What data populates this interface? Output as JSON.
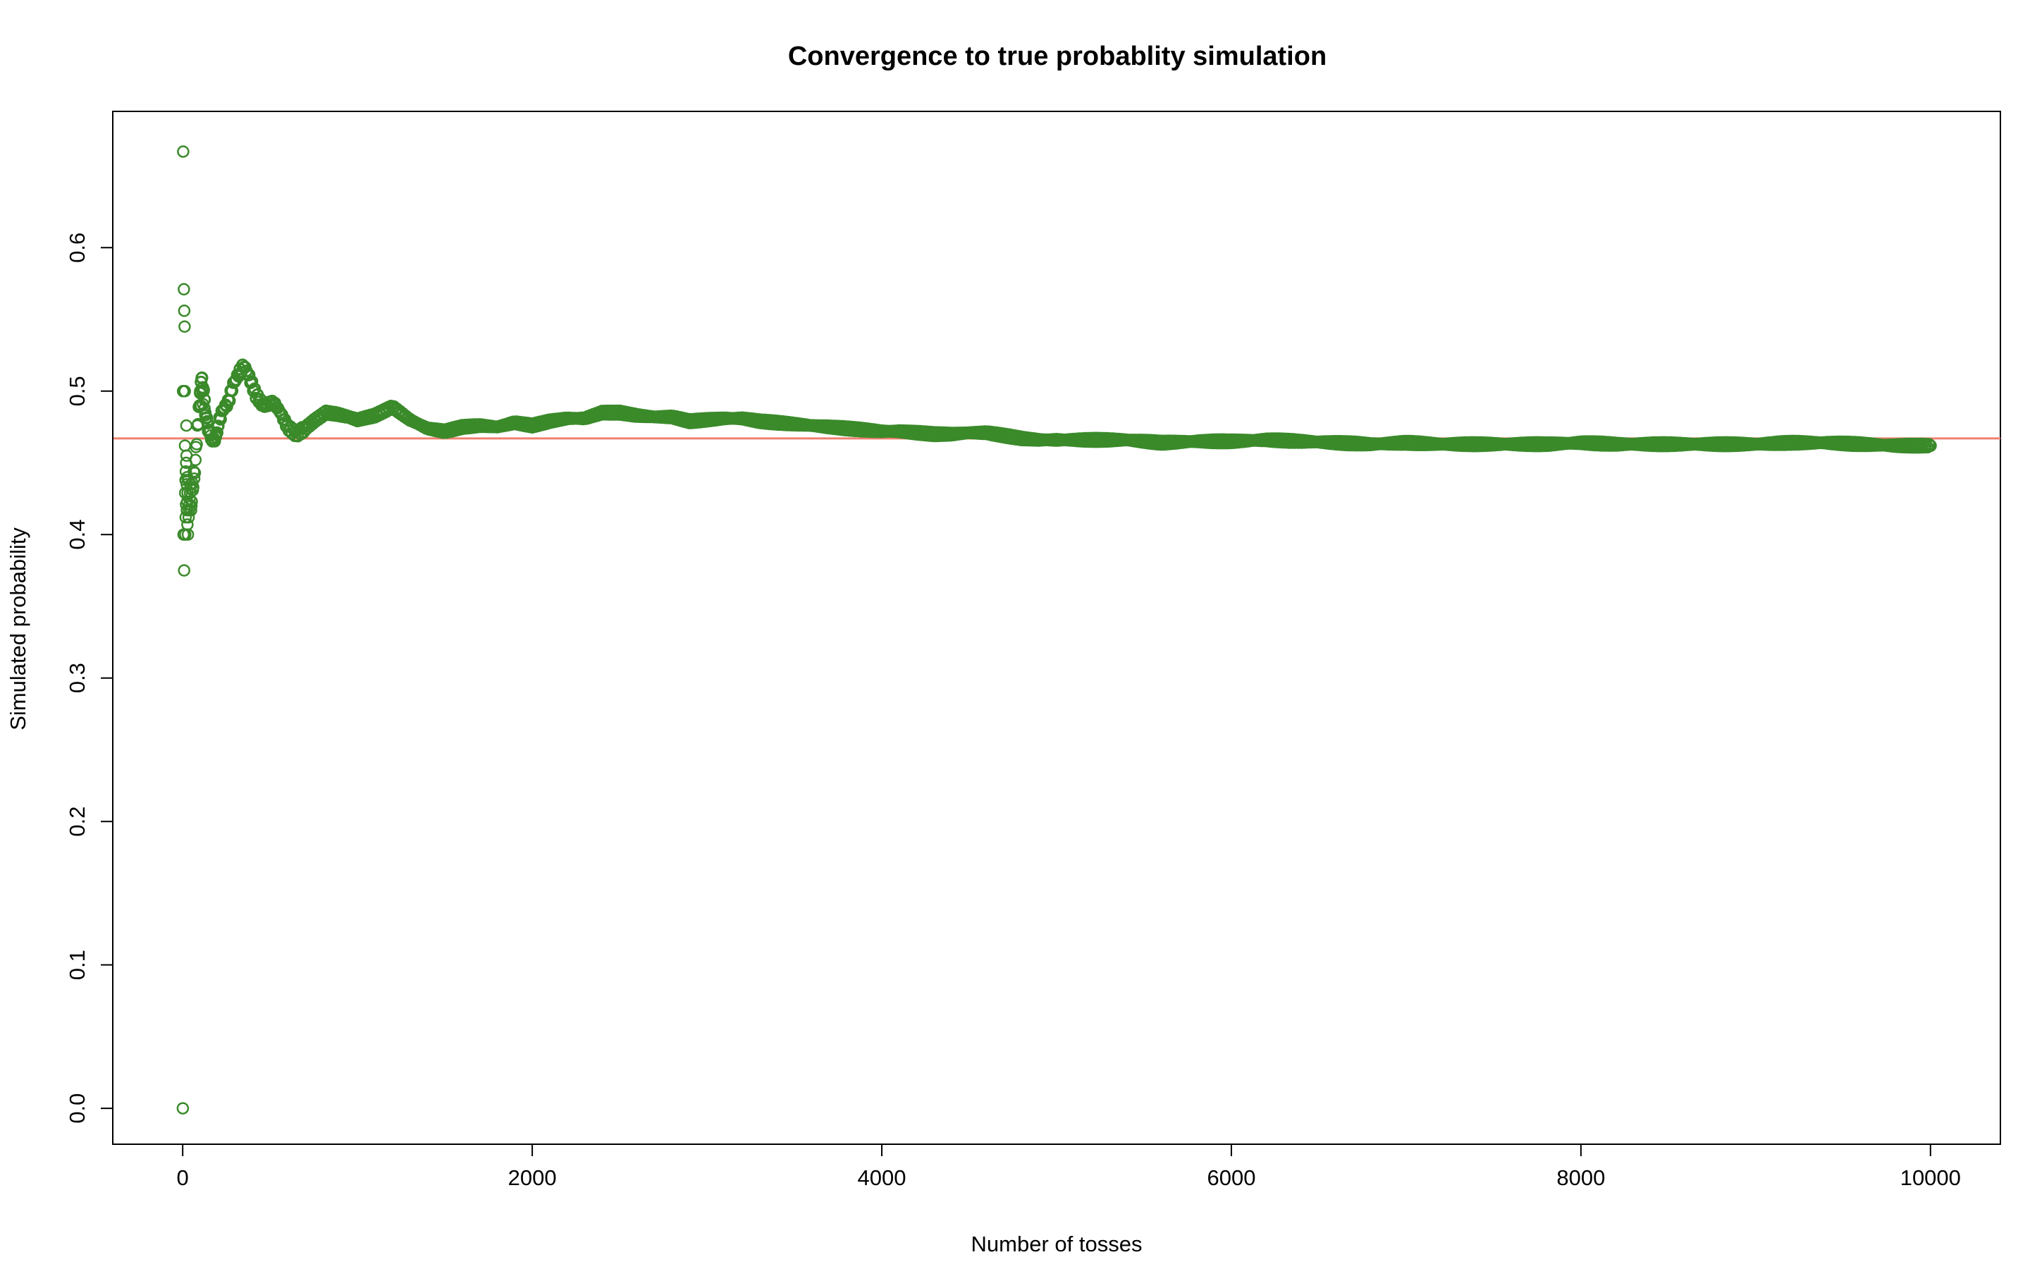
{
  "chart_data": {
    "type": "scatter",
    "title": "Convergence to true probablity simulation",
    "xlabel": "Number of tosses",
    "ylabel": "Simulated probability",
    "xlim": [
      -400,
      10400
    ],
    "ylim": [
      -0.025,
      0.695
    ],
    "x_ticks": [
      0,
      2000,
      4000,
      6000,
      8000,
      10000
    ],
    "x_tick_labels": [
      "0",
      "2000",
      "4000",
      "6000",
      "8000",
      "10000"
    ],
    "y_ticks": [
      0.0,
      0.1,
      0.2,
      0.3,
      0.4,
      0.5,
      0.6
    ],
    "y_tick_labels": [
      "0.0",
      "0.1",
      "0.2",
      "0.3",
      "0.4",
      "0.5",
      "0.6"
    ],
    "grid": false,
    "reference_line": {
      "y": 0.467,
      "color": "#F08070"
    },
    "series_color": "#3A8A2A",
    "trajectory": [
      [
        1,
        0.0
      ],
      [
        2,
        0.5
      ],
      [
        3,
        0.667
      ],
      [
        5,
        0.4
      ],
      [
        7,
        0.571
      ],
      [
        8,
        0.375
      ],
      [
        9,
        0.556
      ],
      [
        10,
        0.5
      ],
      [
        11,
        0.545
      ],
      [
        15,
        0.4
      ],
      [
        20,
        0.45
      ],
      [
        25,
        0.44
      ],
      [
        30,
        0.4
      ],
      [
        40,
        0.425
      ],
      [
        50,
        0.42
      ],
      [
        60,
        0.433
      ],
      [
        70,
        0.443
      ],
      [
        80,
        0.463
      ],
      [
        90,
        0.478
      ],
      [
        100,
        0.5
      ],
      [
        110,
        0.509
      ],
      [
        120,
        0.5
      ],
      [
        130,
        0.485
      ],
      [
        150,
        0.473
      ],
      [
        170,
        0.465
      ],
      [
        190,
        0.468
      ],
      [
        210,
        0.48
      ],
      [
        230,
        0.487
      ],
      [
        260,
        0.492
      ],
      [
        290,
        0.505
      ],
      [
        320,
        0.512
      ],
      [
        350,
        0.518
      ],
      [
        380,
        0.51
      ],
      [
        420,
        0.497
      ],
      [
        460,
        0.49
      ],
      [
        520,
        0.492
      ],
      [
        560,
        0.485
      ],
      [
        600,
        0.475
      ],
      [
        650,
        0.47
      ],
      [
        700,
        0.474
      ],
      [
        760,
        0.48
      ],
      [
        820,
        0.485
      ],
      [
        880,
        0.484
      ],
      [
        950,
        0.482
      ],
      [
        1000,
        0.48
      ],
      [
        1100,
        0.483
      ],
      [
        1200,
        0.489
      ],
      [
        1300,
        0.48
      ],
      [
        1400,
        0.474
      ],
      [
        1500,
        0.472
      ],
      [
        1600,
        0.475
      ],
      [
        1700,
        0.476
      ],
      [
        1800,
        0.475
      ],
      [
        1900,
        0.478
      ],
      [
        2000,
        0.476
      ],
      [
        2100,
        0.479
      ],
      [
        2200,
        0.481
      ],
      [
        2300,
        0.481
      ],
      [
        2400,
        0.485
      ],
      [
        2500,
        0.485
      ],
      [
        2600,
        0.483
      ],
      [
        2700,
        0.482
      ],
      [
        2800,
        0.482
      ],
      [
        2900,
        0.479
      ],
      [
        3000,
        0.48
      ],
      [
        3100,
        0.481
      ],
      [
        3200,
        0.481
      ],
      [
        3300,
        0.479
      ],
      [
        3400,
        0.478
      ],
      [
        3500,
        0.477
      ],
      [
        3600,
        0.476
      ],
      [
        3700,
        0.475
      ],
      [
        3800,
        0.474
      ],
      [
        3900,
        0.473
      ],
      [
        4000,
        0.472
      ],
      [
        4100,
        0.472
      ],
      [
        4200,
        0.471
      ],
      [
        4300,
        0.47
      ],
      [
        4400,
        0.47
      ],
      [
        4500,
        0.471
      ],
      [
        4600,
        0.471
      ],
      [
        4700,
        0.469
      ],
      [
        4800,
        0.467
      ],
      [
        4900,
        0.466
      ],
      [
        5000,
        0.466
      ],
      [
        5200,
        0.466
      ],
      [
        5400,
        0.466
      ],
      [
        5600,
        0.464
      ],
      [
        5800,
        0.465
      ],
      [
        6000,
        0.465
      ],
      [
        6200,
        0.466
      ],
      [
        6400,
        0.465
      ],
      [
        6600,
        0.464
      ],
      [
        6800,
        0.463
      ],
      [
        7000,
        0.464
      ],
      [
        7200,
        0.463
      ],
      [
        7400,
        0.463
      ],
      [
        7600,
        0.463
      ],
      [
        7800,
        0.463
      ],
      [
        8000,
        0.464
      ],
      [
        8200,
        0.463
      ],
      [
        8400,
        0.463
      ],
      [
        8600,
        0.463
      ],
      [
        8800,
        0.463
      ],
      [
        9000,
        0.463
      ],
      [
        9200,
        0.464
      ],
      [
        9400,
        0.464
      ],
      [
        9600,
        0.463
      ],
      [
        9800,
        0.462
      ],
      [
        10000,
        0.462
      ]
    ],
    "early_points": [
      [
        1,
        0.0
      ],
      [
        2,
        0.5
      ],
      [
        3,
        0.667
      ],
      [
        4,
        0.5
      ],
      [
        5,
        0.4
      ],
      [
        6,
        0.5
      ],
      [
        7,
        0.571
      ],
      [
        8,
        0.375
      ],
      [
        9,
        0.556
      ],
      [
        10,
        0.5
      ],
      [
        11,
        0.545
      ],
      [
        12,
        0.5
      ],
      [
        13,
        0.462
      ],
      [
        14,
        0.429
      ],
      [
        15,
        0.4
      ],
      [
        16,
        0.438
      ],
      [
        17,
        0.412
      ],
      [
        18,
        0.444
      ],
      [
        19,
        0.421
      ],
      [
        20,
        0.45
      ],
      [
        21,
        0.476
      ],
      [
        22,
        0.455
      ],
      [
        23,
        0.435
      ],
      [
        24,
        0.417
      ],
      [
        25,
        0.44
      ],
      [
        26,
        0.423
      ],
      [
        27,
        0.407
      ],
      [
        28,
        0.429
      ],
      [
        30,
        0.4
      ],
      [
        32,
        0.438
      ],
      [
        34,
        0.412
      ],
      [
        36,
        0.417
      ],
      [
        38,
        0.421
      ],
      [
        40,
        0.425
      ],
      [
        42,
        0.429
      ],
      [
        44,
        0.432
      ],
      [
        46,
        0.435
      ],
      [
        48,
        0.417
      ],
      [
        50,
        0.42
      ],
      [
        52,
        0.423
      ],
      [
        55,
        0.436
      ],
      [
        58,
        0.431
      ],
      [
        60,
        0.433
      ],
      [
        63,
        0.444
      ],
      [
        66,
        0.439
      ],
      [
        70,
        0.443
      ],
      [
        73,
        0.452
      ],
      [
        76,
        0.461
      ],
      [
        80,
        0.463
      ],
      [
        84,
        0.476
      ],
      [
        88,
        0.477
      ],
      [
        92,
        0.489
      ],
      [
        96,
        0.49
      ],
      [
        100,
        0.5
      ],
      [
        104,
        0.49
      ],
      [
        108,
        0.509
      ],
      [
        112,
        0.5
      ],
      [
        116,
        0.491
      ],
      [
        120,
        0.5
      ],
      [
        125,
        0.488
      ],
      [
        130,
        0.485
      ],
      [
        135,
        0.481
      ],
      [
        140,
        0.479
      ],
      [
        145,
        0.472
      ],
      [
        150,
        0.473
      ],
      [
        160,
        0.469
      ],
      [
        170,
        0.465
      ],
      [
        180,
        0.467
      ],
      [
        190,
        0.468
      ],
      [
        200,
        0.475
      ]
    ]
  }
}
